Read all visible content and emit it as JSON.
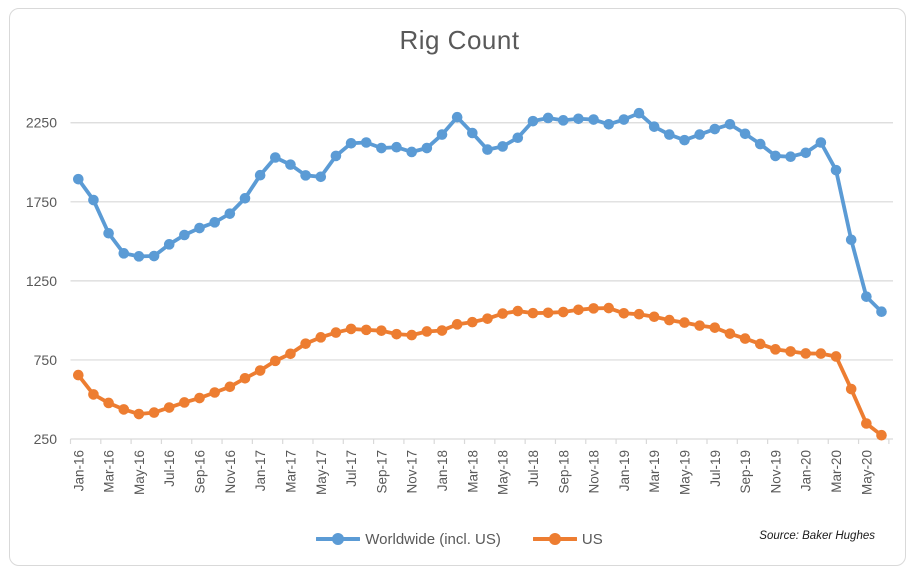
{
  "chart": {
    "title": "Rig Count",
    "source_note": "Source: Baker Hughes",
    "legend": [
      {
        "id": "worldwide",
        "label": "Worldwide (incl. US)",
        "color": "#5B9BD5"
      },
      {
        "id": "us",
        "label": "US",
        "color": "#ED7D31"
      }
    ]
  },
  "style": {
    "background": "#FFFFFF",
    "frame_border_color": "#D9D9D9",
    "grid_color": "#D9D9D9",
    "axis_text_color": "#595959",
    "title_color": "#595959"
  },
  "chart_data": {
    "type": "line",
    "title": "Rig Count",
    "xlabel": "",
    "ylabel": "",
    "ylim": [
      250,
      2400
    ],
    "yticks": [
      250,
      750,
      1250,
      1750,
      2250
    ],
    "grid": "horizontal",
    "legend_position": "bottom",
    "x_label_every": 2,
    "x": [
      "Jan-16",
      "Feb-16",
      "Mar-16",
      "Apr-16",
      "May-16",
      "Jun-16",
      "Jul-16",
      "Aug-16",
      "Sep-16",
      "Oct-16",
      "Nov-16",
      "Dec-16",
      "Jan-17",
      "Feb-17",
      "Mar-17",
      "Apr-17",
      "May-17",
      "Jun-17",
      "Jul-17",
      "Aug-17",
      "Sep-17",
      "Oct-17",
      "Nov-17",
      "Dec-17",
      "Jan-18",
      "Feb-18",
      "Mar-18",
      "Apr-18",
      "May-18",
      "Jun-18",
      "Jul-18",
      "Aug-18",
      "Sep-18",
      "Oct-18",
      "Nov-18",
      "Dec-18",
      "Jan-19",
      "Feb-19",
      "Mar-19",
      "Apr-19",
      "May-19",
      "Jun-19",
      "Jul-19",
      "Aug-19",
      "Sep-19",
      "Oct-19",
      "Nov-19",
      "Dec-19",
      "Jan-20",
      "Feb-20",
      "Mar-20",
      "Apr-20",
      "May-20",
      "Jun-20"
    ],
    "series": [
      {
        "name": "Worldwide (incl. US)",
        "color": "#5B9BD5",
        "values": [
          1893,
          1761,
          1551,
          1424,
          1405,
          1407,
          1481,
          1540,
          1584,
          1620,
          1675,
          1772,
          1918,
          2030,
          1985,
          1917,
          1908,
          2040,
          2120,
          2125,
          2090,
          2095,
          2065,
          2090,
          2175,
          2285,
          2185,
          2080,
          2100,
          2155,
          2260,
          2280,
          2265,
          2275,
          2270,
          2240,
          2270,
          2310,
          2225,
          2175,
          2140,
          2175,
          2210,
          2240,
          2180,
          2115,
          2040,
          2035,
          2060,
          2125,
          1950,
          1510,
          1150,
          1055
        ]
      },
      {
        "name": "US",
        "color": "#ED7D31",
        "values": [
          654,
          532,
          478,
          437,
          408,
          417,
          449,
          481,
          509,
          544,
          580,
          634,
          683,
          744,
          789,
          853,
          893,
          923,
          946,
          940,
          935,
          913,
          907,
          930,
          936,
          975,
          989,
          1011,
          1043,
          1059,
          1046,
          1048,
          1053,
          1067,
          1076,
          1078,
          1045,
          1039,
          1023,
          1002,
          986,
          967,
          954,
          916,
          885,
          851,
          817,
          804,
          791,
          790,
          772,
          566,
          348,
          274
        ]
      }
    ],
    "annotations": [
      "Source: Baker Hughes"
    ]
  }
}
